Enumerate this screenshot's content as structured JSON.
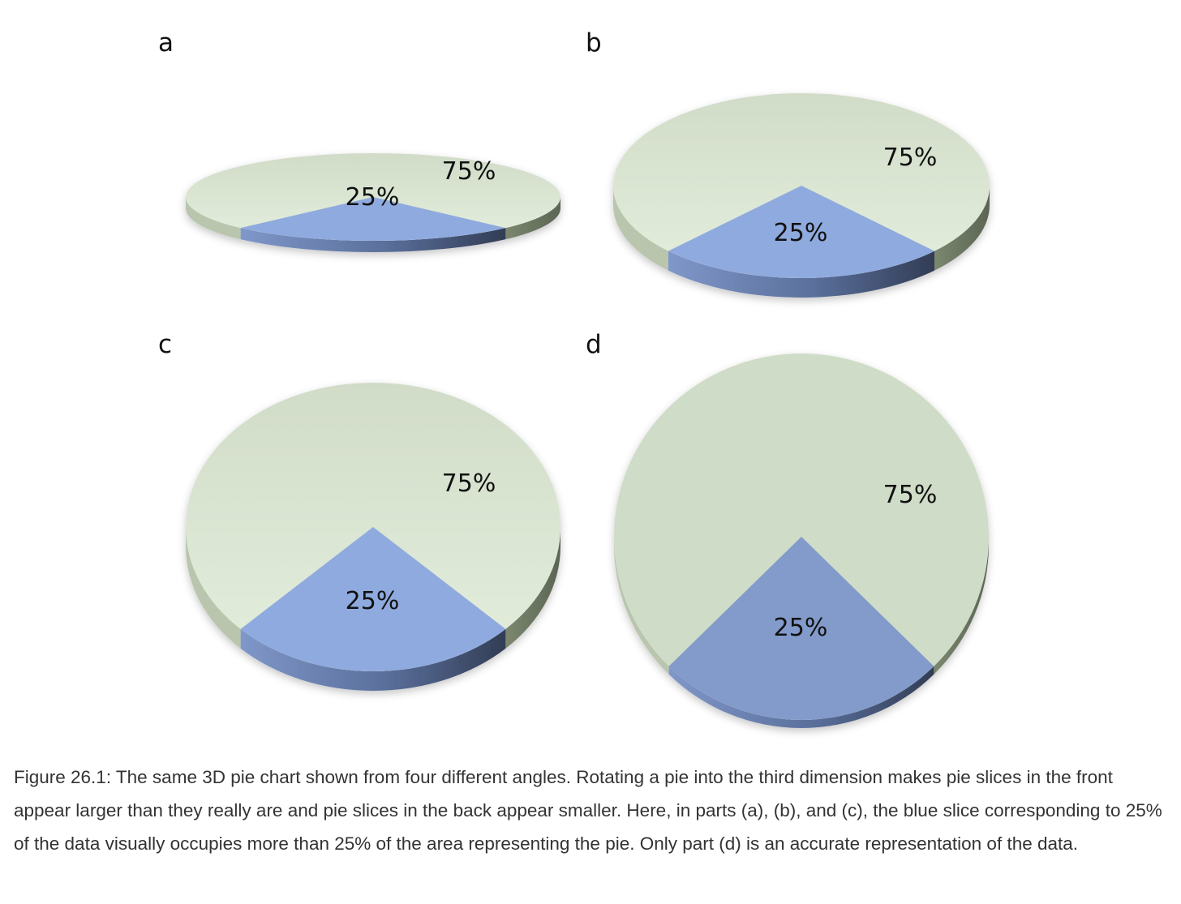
{
  "colors": {
    "large_slice_top_light": "#e3eedc",
    "large_slice_top_dark": "#cfdcc7",
    "small_slice_top": "#8faade",
    "small_slice_top_dark": "#829bcb",
    "large_slice_side": "#a9b79c",
    "small_slice_side": "#5a6f9b"
  },
  "chart_data": [
    {
      "type": "pie",
      "panel": "a",
      "values": [
        25,
        75
      ],
      "data_labels": [
        "25%",
        "75%"
      ],
      "slice_colors": [
        "blue",
        "light green"
      ]
    },
    {
      "type": "pie",
      "panel": "b",
      "values": [
        25,
        75
      ],
      "data_labels": [
        "25%",
        "75%"
      ],
      "slice_colors": [
        "blue",
        "light green"
      ]
    },
    {
      "type": "pie",
      "panel": "c",
      "values": [
        25,
        75
      ],
      "data_labels": [
        "25%",
        "75%"
      ],
      "slice_colors": [
        "blue",
        "light green"
      ]
    },
    {
      "type": "pie",
      "panel": "d",
      "values": [
        25,
        75
      ],
      "data_labels": [
        "25%",
        "75%"
      ],
      "slice_colors": [
        "blue",
        "light green"
      ]
    }
  ],
  "caption": "Figure 26.1: The same 3D pie chart shown from four different angles. Rotating a pie into the third dimension makes pie slices in the front appear larger than they really are and pie slices in the back appear smaller. Here, in parts (a), (b), and (c), the blue slice corresponding to 25% of the data visually occupies more than 25% of the area representing the pie. Only part (d) is an accurate representation of the data."
}
